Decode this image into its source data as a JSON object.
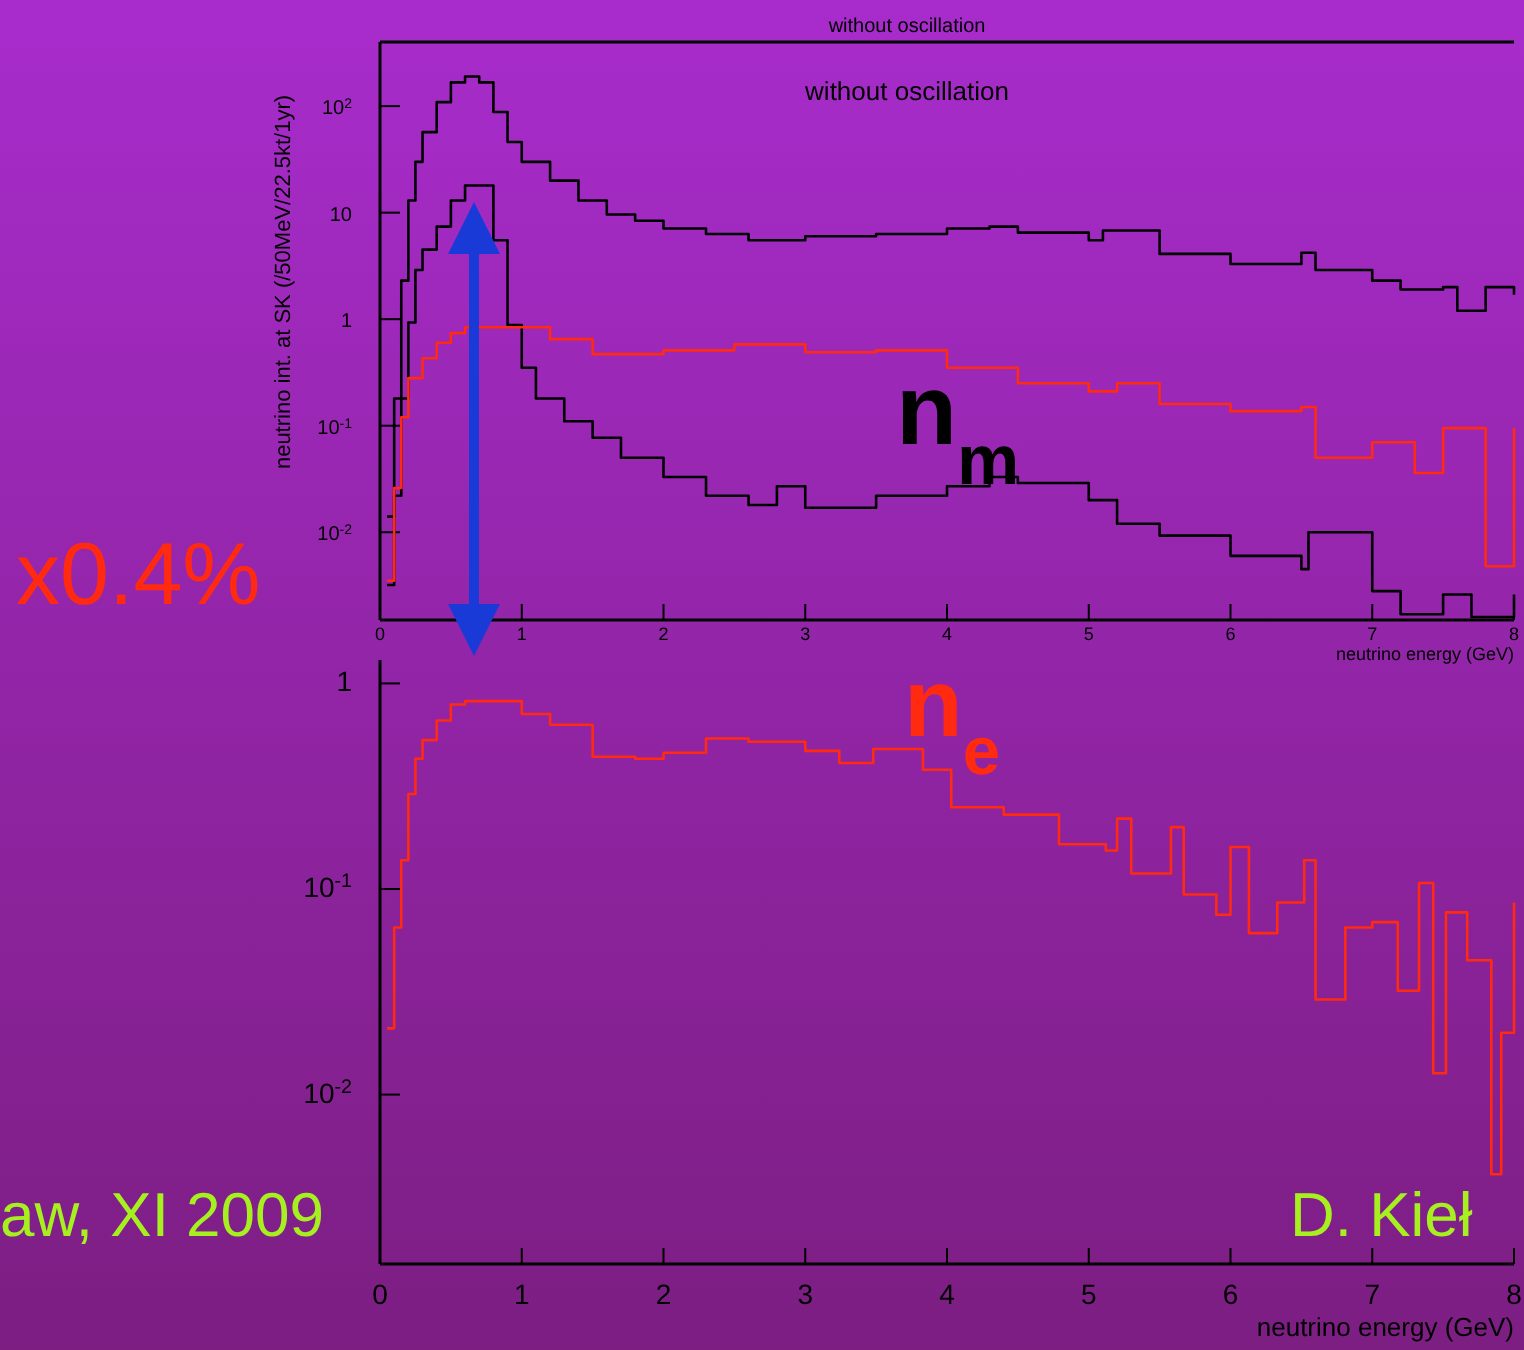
{
  "chart_data": [
    {
      "type": "step",
      "title": "without oscillation",
      "subtitle": "without oscillation",
      "ylabel": "neutrino int. at SK (/50MeV/22.5kt/1yr)",
      "xlabel": "neutrino energy (GeV)",
      "xlim": [
        0,
        8
      ],
      "xticks": [
        0,
        1,
        2,
        3,
        4,
        5,
        6,
        7,
        8
      ],
      "ylim": [
        0.0015,
        400
      ],
      "yticks": [
        {
          "value": 100,
          "label": "10$^{2}$"
        },
        {
          "value": 10,
          "label": "10"
        },
        {
          "value": 1,
          "label": "1"
        },
        {
          "value": 0.1,
          "label": "10$^{-1}$"
        },
        {
          "value": 0.01,
          "label": "10$^{-2}$"
        }
      ],
      "log": true,
      "annotations": [
        "x0.4%",
        "n$_{m}$"
      ],
      "series": [
        {
          "color": "#000000",
          "x": [
            0.05,
            0.1,
            0.15,
            0.2,
            0.25,
            0.3,
            0.4,
            0.5,
            0.6,
            0.7,
            0.8,
            0.9,
            1.0,
            1.2,
            1.4,
            1.6,
            1.8,
            2.0,
            2.3,
            2.6,
            3.0,
            3.5,
            4.0,
            4.3,
            4.5,
            5.0,
            5.1,
            5.5,
            6.0,
            6.5,
            6.6,
            7.0,
            7.2,
            7.5,
            7.6,
            7.8,
            8.0
          ],
          "values": [
            0.014,
            0.18,
            2.3,
            13,
            30,
            57,
            109,
            167,
            190,
            167,
            88,
            46,
            30,
            20,
            13,
            9.6,
            8.4,
            7.1,
            6.3,
            5.5,
            6.0,
            6.3,
            7.1,
            7.4,
            6.5,
            5.5,
            6.8,
            4.1,
            3.3,
            4.2,
            2.9,
            2.3,
            1.9,
            2.0,
            1.2,
            2.0,
            1.7
          ]
        },
        {
          "color": "#000000",
          "x": [
            0.05,
            0.1,
            0.15,
            0.2,
            0.25,
            0.3,
            0.4,
            0.5,
            0.6,
            0.7,
            0.8,
            0.9,
            1.0,
            1.1,
            1.3,
            1.5,
            1.7,
            2.0,
            2.3,
            2.6,
            2.8,
            3.0,
            3.5,
            4.0,
            4.3,
            4.5,
            5.0,
            5.2,
            5.5,
            6.0,
            6.5,
            6.55,
            7.0,
            7.2,
            7.5,
            7.7,
            8.0
          ],
          "values": [
            0.0032,
            0.022,
            0.18,
            0.93,
            2.9,
            4.5,
            7.4,
            13,
            18,
            18,
            5.5,
            0.88,
            0.35,
            0.18,
            0.11,
            0.077,
            0.05,
            0.033,
            0.022,
            0.018,
            0.027,
            0.017,
            0.022,
            0.027,
            0.033,
            0.029,
            0.02,
            0.012,
            0.0093,
            0.006,
            0.0045,
            0.01,
            0.0028,
            0.0017,
            0.0026,
            0.0016,
            0.0026
          ]
        },
        {
          "color": "#ff2a10",
          "x": [
            0.05,
            0.1,
            0.15,
            0.2,
            0.3,
            0.4,
            0.5,
            0.6,
            0.9,
            1.2,
            1.5,
            2.0,
            2.5,
            3.0,
            3.5,
            4.0,
            4.5,
            5.0,
            5.2,
            5.5,
            6.0,
            6.5,
            6.6,
            7.0,
            7.3,
            7.5,
            7.8,
            8.0
          ],
          "values": [
            0.0035,
            0.026,
            0.12,
            0.28,
            0.43,
            0.6,
            0.74,
            0.84,
            0.84,
            0.65,
            0.47,
            0.51,
            0.58,
            0.49,
            0.51,
            0.35,
            0.25,
            0.21,
            0.25,
            0.16,
            0.137,
            0.15,
            0.05,
            0.07,
            0.036,
            0.095,
            0.0048,
            0.095
          ]
        }
      ]
    },
    {
      "type": "step",
      "xlabel": "neutrino energy (GeV)",
      "xlim": [
        0,
        8
      ],
      "xticks": [
        0,
        1,
        2,
        3,
        4,
        5,
        6,
        7,
        8
      ],
      "ylim": [
        0.0015,
        1.3
      ],
      "yticks": [
        1,
        {
          "value": 0.1,
          "label": "10$^{-1}$"
        },
        {
          "value": 0.01,
          "label": "10$^{-2}$"
        }
      ],
      "log": true,
      "annotations": [
        "n$_{e}$",
        "aw, XI 2009",
        "D. Kieł"
      ],
      "series": [
        {
          "color": "#ff2a10",
          "x": [
            0.05,
            0.1,
            0.15,
            0.2,
            0.25,
            0.3,
            0.4,
            0.5,
            0.6,
            0.9,
            1.0,
            1.2,
            1.5,
            1.8,
            2.0,
            2.3,
            2.6,
            3.0,
            3.24,
            3.48,
            3.83,
            4.03,
            4.4,
            4.65,
            4.79,
            5.12,
            5.2,
            5.3,
            5.58,
            5.67,
            5.9,
            6.0,
            6.13,
            6.33,
            6.52,
            6.6,
            6.81,
            7.0,
            7.18,
            7.33,
            7.43,
            7.52,
            7.67,
            7.84,
            7.91,
            8.0
          ],
          "values": [
            0.021,
            0.065,
            0.138,
            0.29,
            0.43,
            0.53,
            0.66,
            0.79,
            0.82,
            0.82,
            0.71,
            0.63,
            0.44,
            0.43,
            0.46,
            0.54,
            0.52,
            0.47,
            0.41,
            0.48,
            0.38,
            0.25,
            0.23,
            0.23,
            0.165,
            0.154,
            0.22,
            0.119,
            0.2,
            0.094,
            0.075,
            0.16,
            0.061,
            0.086,
            0.138,
            0.029,
            0.065,
            0.069,
            0.032,
            0.107,
            0.0127,
            0.077,
            0.045,
            0.0041,
            0.02,
            0.086
          ]
        }
      ]
    }
  ]
}
